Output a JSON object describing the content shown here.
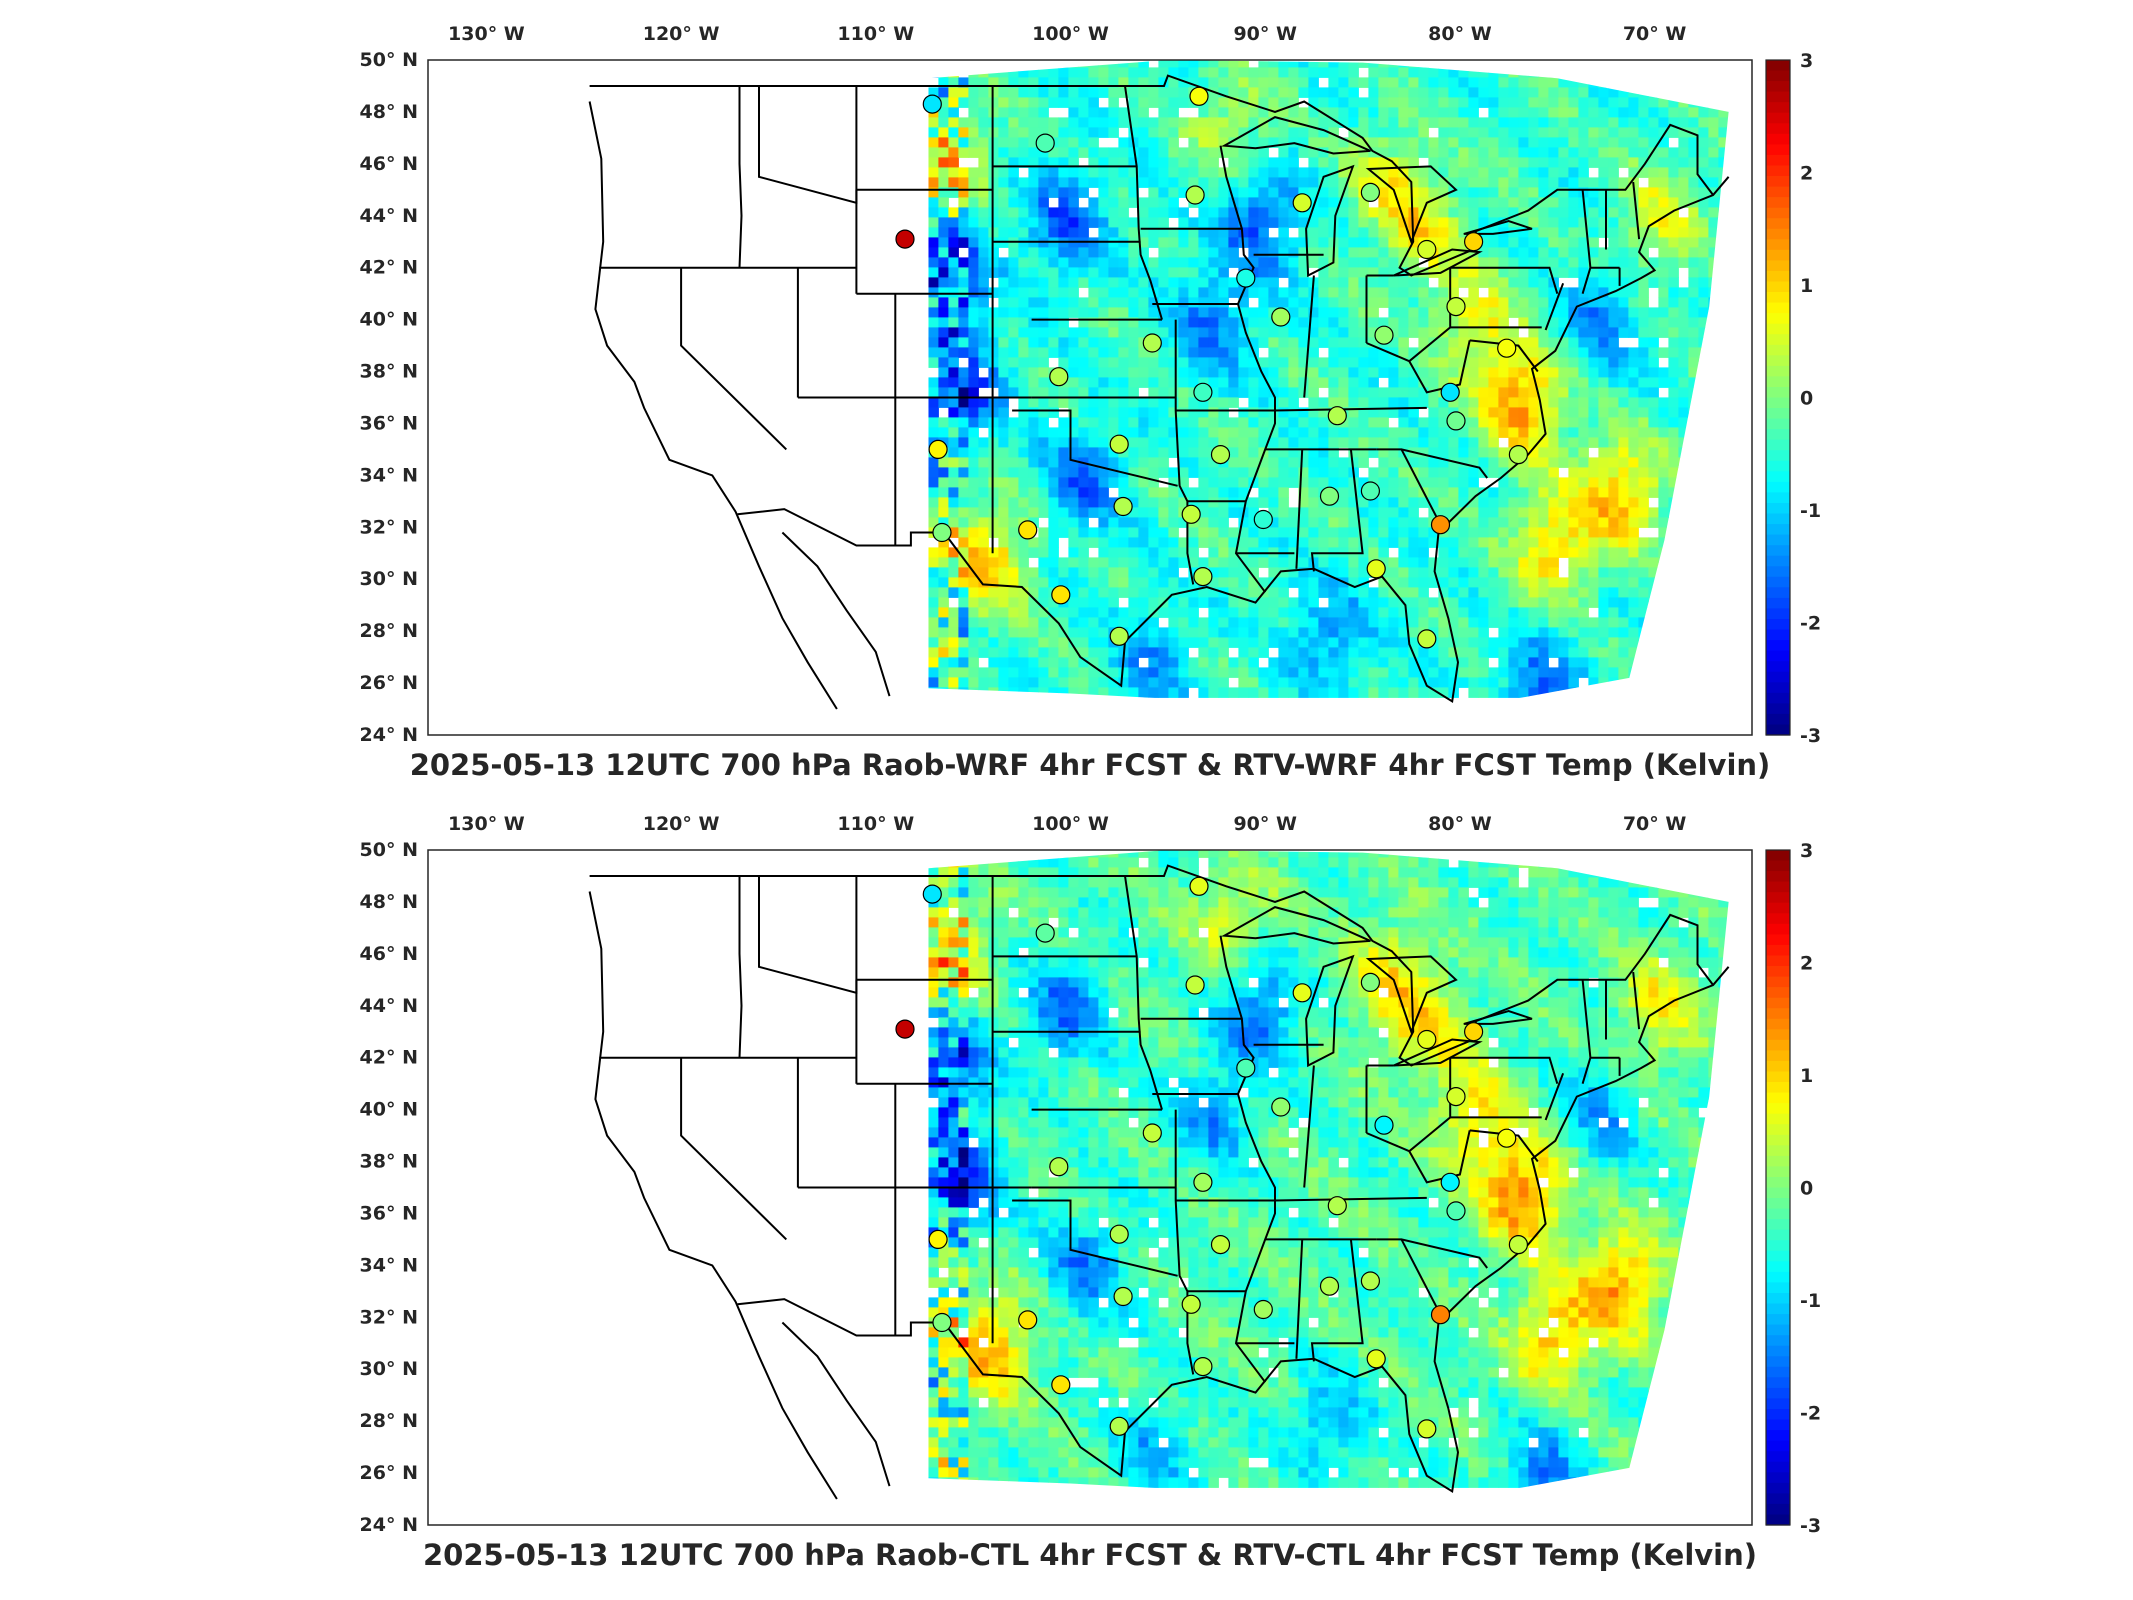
{
  "panels": [
    {
      "title": "2025-05-13 12UTC 700 hPa Raob-WRF 4hr FCST & RTV-WRF 4hr FCST Temp (Kelvin)",
      "lon_ticks": [
        "130° W",
        "120° W",
        "110° W",
        "100° W",
        "90° W",
        "80° W",
        "70° W"
      ],
      "lat_ticks": [
        "50° N",
        "48° N",
        "46° N",
        "44° N",
        "42° N",
        "40° N",
        "38° N",
        "36° N",
        "34° N",
        "32° N",
        "30° N",
        "28° N",
        "26° N",
        "24° N"
      ],
      "colorbar": {
        "min": -3,
        "max": 3,
        "ticks": [
          "3",
          "2",
          "1",
          "0",
          "-1",
          "-2",
          "-3"
        ]
      },
      "stations": [
        {
          "lon": -107.1,
          "lat": 48.3,
          "value": -0.9
        },
        {
          "lon": -93.4,
          "lat": 48.6,
          "value": 0.7
        },
        {
          "lon": -101.3,
          "lat": 46.8,
          "value": -0.3
        },
        {
          "lon": -93.6,
          "lat": 44.8,
          "value": 0.3
        },
        {
          "lon": -88.1,
          "lat": 44.5,
          "value": 0.5
        },
        {
          "lon": -84.6,
          "lat": 44.9,
          "value": 0.0
        },
        {
          "lon": -108.5,
          "lat": 43.1,
          "value": 2.6
        },
        {
          "lon": -81.7,
          "lat": 42.7,
          "value": 0.5
        },
        {
          "lon": -79.3,
          "lat": 43.0,
          "value": 1.0
        },
        {
          "lon": -91.0,
          "lat": 41.6,
          "value": -0.6
        },
        {
          "lon": -89.2,
          "lat": 40.1,
          "value": 0.2
        },
        {
          "lon": -80.2,
          "lat": 40.5,
          "value": 0.4
        },
        {
          "lon": -83.9,
          "lat": 39.4,
          "value": 0.1
        },
        {
          "lon": -95.8,
          "lat": 39.1,
          "value": 0.3
        },
        {
          "lon": -100.6,
          "lat": 37.8,
          "value": 0.3
        },
        {
          "lon": -93.2,
          "lat": 37.2,
          "value": -0.4
        },
        {
          "lon": -77.6,
          "lat": 38.9,
          "value": 0.7
        },
        {
          "lon": -80.5,
          "lat": 37.2,
          "value": -0.9
        },
        {
          "lon": -86.3,
          "lat": 36.3,
          "value": 0.3
        },
        {
          "lon": -80.2,
          "lat": 36.1,
          "value": -0.1
        },
        {
          "lon": -106.8,
          "lat": 35.0,
          "value": 0.8
        },
        {
          "lon": -97.5,
          "lat": 35.2,
          "value": 0.4
        },
        {
          "lon": -92.3,
          "lat": 34.8,
          "value": 0.3
        },
        {
          "lon": -77.0,
          "lat": 34.8,
          "value": 0.3
        },
        {
          "lon": -97.3,
          "lat": 32.8,
          "value": 0.3
        },
        {
          "lon": -93.8,
          "lat": 32.5,
          "value": 0.4
        },
        {
          "lon": -90.1,
          "lat": 32.3,
          "value": -0.5
        },
        {
          "lon": -86.7,
          "lat": 33.2,
          "value": 0.0
        },
        {
          "lon": -84.6,
          "lat": 33.4,
          "value": -0.3
        },
        {
          "lon": -81.0,
          "lat": 32.1,
          "value": 1.4
        },
        {
          "lon": -106.6,
          "lat": 31.8,
          "value": 0.0
        },
        {
          "lon": -102.2,
          "lat": 31.9,
          "value": 0.9
        },
        {
          "lon": -93.2,
          "lat": 30.1,
          "value": 0.3
        },
        {
          "lon": -84.3,
          "lat": 30.4,
          "value": 0.6
        },
        {
          "lon": -100.5,
          "lat": 29.4,
          "value": 0.9
        },
        {
          "lon": -97.5,
          "lat": 27.8,
          "value": 0.3
        },
        {
          "lon": -81.7,
          "lat": 27.7,
          "value": 0.4
        }
      ]
    },
    {
      "title": "2025-05-13 12UTC 700 hPa Raob-CTL 4hr FCST & RTV-CTL 4hr FCST Temp (Kelvin)",
      "lon_ticks": [
        "130° W",
        "120° W",
        "110° W",
        "100° W",
        "90° W",
        "80° W",
        "70° W"
      ],
      "lat_ticks": [
        "50° N",
        "48° N",
        "46° N",
        "44° N",
        "42° N",
        "40° N",
        "38° N",
        "36° N",
        "34° N",
        "32° N",
        "30° N",
        "28° N",
        "26° N",
        "24° N"
      ],
      "colorbar": {
        "min": -3,
        "max": 3,
        "ticks": [
          "3",
          "2",
          "1",
          "0",
          "-1",
          "-2",
          "-3"
        ]
      },
      "stations": [
        {
          "lon": -107.1,
          "lat": 48.3,
          "value": -0.9
        },
        {
          "lon": -93.4,
          "lat": 48.6,
          "value": 0.6
        },
        {
          "lon": -101.3,
          "lat": 46.8,
          "value": -0.2
        },
        {
          "lon": -93.6,
          "lat": 44.8,
          "value": 0.4
        },
        {
          "lon": -88.1,
          "lat": 44.5,
          "value": 0.6
        },
        {
          "lon": -84.6,
          "lat": 44.9,
          "value": 0.0
        },
        {
          "lon": -108.5,
          "lat": 43.1,
          "value": 2.6
        },
        {
          "lon": -81.7,
          "lat": 42.7,
          "value": 0.6
        },
        {
          "lon": -79.3,
          "lat": 43.0,
          "value": 1.0
        },
        {
          "lon": -91.0,
          "lat": 41.6,
          "value": -0.3
        },
        {
          "lon": -89.2,
          "lat": 40.1,
          "value": 0.1
        },
        {
          "lon": -80.2,
          "lat": 40.5,
          "value": 0.5
        },
        {
          "lon": -83.9,
          "lat": 39.4,
          "value": -0.8
        },
        {
          "lon": -95.8,
          "lat": 39.1,
          "value": 0.4
        },
        {
          "lon": -100.6,
          "lat": 37.8,
          "value": 0.3
        },
        {
          "lon": -93.2,
          "lat": 37.2,
          "value": 0.2
        },
        {
          "lon": -77.6,
          "lat": 38.9,
          "value": 0.7
        },
        {
          "lon": -80.5,
          "lat": 37.2,
          "value": -0.8
        },
        {
          "lon": -86.3,
          "lat": 36.3,
          "value": 0.3
        },
        {
          "lon": -80.2,
          "lat": 36.1,
          "value": -0.3
        },
        {
          "lon": -106.8,
          "lat": 35.0,
          "value": 0.8
        },
        {
          "lon": -97.5,
          "lat": 35.2,
          "value": 0.3
        },
        {
          "lon": -92.3,
          "lat": 34.8,
          "value": 0.4
        },
        {
          "lon": -77.0,
          "lat": 34.8,
          "value": 0.4
        },
        {
          "lon": -97.3,
          "lat": 32.8,
          "value": 0.3
        },
        {
          "lon": -93.8,
          "lat": 32.5,
          "value": 0.4
        },
        {
          "lon": -90.1,
          "lat": 32.3,
          "value": 0.2
        },
        {
          "lon": -86.7,
          "lat": 33.2,
          "value": 0.3
        },
        {
          "lon": -84.6,
          "lat": 33.4,
          "value": 0.3
        },
        {
          "lon": -81.0,
          "lat": 32.1,
          "value": 1.5
        },
        {
          "lon": -106.6,
          "lat": 31.8,
          "value": 0.0
        },
        {
          "lon": -102.2,
          "lat": 31.9,
          "value": 0.9
        },
        {
          "lon": -93.2,
          "lat": 30.1,
          "value": 0.3
        },
        {
          "lon": -84.3,
          "lat": 30.4,
          "value": 0.6
        },
        {
          "lon": -100.5,
          "lat": 29.4,
          "value": 0.9
        },
        {
          "lon": -97.5,
          "lat": 27.8,
          "value": 0.3
        },
        {
          "lon": -81.7,
          "lat": 27.7,
          "value": 0.5
        }
      ]
    }
  ],
  "anomaly_blobs": [
    {
      "lon": -77.0,
      "lat": 37.0,
      "value": 1.8
    },
    {
      "lon": -72.0,
      "lat": 33.5,
      "value": 1.6
    },
    {
      "lon": -75.5,
      "lat": 31.5,
      "value": 1.4
    },
    {
      "lon": -79.5,
      "lat": 40.0,
      "value": 1.1
    },
    {
      "lon": -82.0,
      "lat": 43.5,
      "value": 1.0
    },
    {
      "lon": -104.5,
      "lat": 31.0,
      "value": 1.5
    },
    {
      "lon": -106.5,
      "lat": 46.5,
      "value": 1.2
    },
    {
      "lon": -70.0,
      "lat": 44.0,
      "value": 1.0
    },
    {
      "lon": -92.0,
      "lat": 47.5,
      "value": 0.8
    },
    {
      "lon": -84.0,
      "lat": 45.5,
      "value": 0.9
    },
    {
      "lon": -100.5,
      "lat": 44.0,
      "value": -1.2
    },
    {
      "lon": -90.5,
      "lat": 44.0,
      "value": -1.3
    },
    {
      "lon": -106.0,
      "lat": 37.5,
      "value": -1.7
    },
    {
      "lon": -106.5,
      "lat": 42.0,
      "value": -1.5
    },
    {
      "lon": -99.5,
      "lat": 34.0,
      "value": -1.1
    },
    {
      "lon": -73.0,
      "lat": 40.0,
      "value": -0.9
    },
    {
      "lon": -93.0,
      "lat": 40.0,
      "value": -1.0
    },
    {
      "lon": -87.0,
      "lat": 28.0,
      "value": -0.9
    },
    {
      "lon": -96.0,
      "lat": 27.0,
      "value": -0.8
    },
    {
      "lon": -76.0,
      "lat": 25.8,
      "value": -1.2
    }
  ]
}
